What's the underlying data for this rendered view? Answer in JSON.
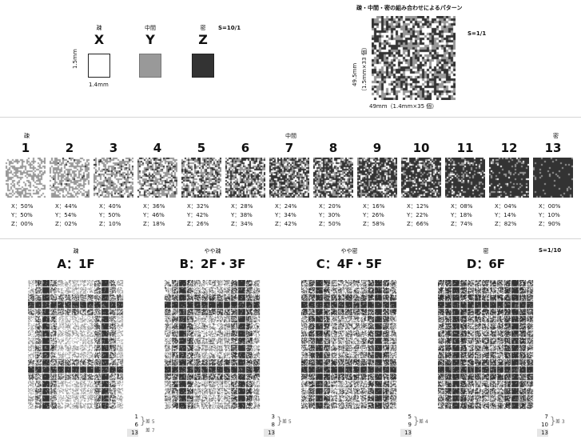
{
  "top": {
    "materials": [
      {
        "density_label": "疎",
        "letter": "X",
        "color": "#ffffff"
      },
      {
        "density_label": "中間",
        "letter": "Y",
        "color": "#999999"
      },
      {
        "density_label": "密",
        "letter": "Z",
        "color": "#333333"
      }
    ],
    "scale_left": "S=10/1",
    "height_dim": "1.5mm",
    "width_dim": "1.4mm",
    "pattern_title": "疎・中間・密の組み合わせによるパターン",
    "scale_right": "S=1/1",
    "pattern_height_dim": "49.5mm",
    "pattern_height_sub": "（1.5mm×33 個）",
    "pattern_width_dim": "49mm（1.4mm×35 個）"
  },
  "densities": {
    "label_sparse": "疎",
    "label_mid": "中間",
    "label_dense": "密",
    "items": [
      {
        "n": "1",
        "x": "X：50%",
        "y": "Y：50%",
        "z": "Z：00%",
        "xv": 50,
        "yv": 50,
        "zv": 0
      },
      {
        "n": "2",
        "x": "X：44%",
        "y": "Y：54%",
        "z": "Z：02%",
        "xv": 44,
        "yv": 54,
        "zv": 2
      },
      {
        "n": "3",
        "x": "X：40%",
        "y": "Y：50%",
        "z": "Z：10%",
        "xv": 40,
        "yv": 50,
        "zv": 10
      },
      {
        "n": "4",
        "x": "X：36%",
        "y": "Y：46%",
        "z": "Z：18%",
        "xv": 36,
        "yv": 46,
        "zv": 18
      },
      {
        "n": "5",
        "x": "X：32%",
        "y": "Y：42%",
        "z": "Z：26%",
        "xv": 32,
        "yv": 42,
        "zv": 26
      },
      {
        "n": "6",
        "x": "X：28%",
        "y": "Y：38%",
        "z": "Z：34%",
        "xv": 28,
        "yv": 38,
        "zv": 34
      },
      {
        "n": "7",
        "x": "X：24%",
        "y": "Y：34%",
        "z": "Z：42%",
        "xv": 24,
        "yv": 34,
        "zv": 42
      },
      {
        "n": "8",
        "x": "X：20%",
        "y": "Y：30%",
        "z": "Z：50%",
        "xv": 20,
        "yv": 30,
        "zv": 50
      },
      {
        "n": "9",
        "x": "X：16%",
        "y": "Y：26%",
        "z": "Z：58%",
        "xv": 16,
        "yv": 26,
        "zv": 58
      },
      {
        "n": "10",
        "x": "X：12%",
        "y": "Y：22%",
        "z": "Z：66%",
        "xv": 12,
        "yv": 22,
        "zv": 66
      },
      {
        "n": "11",
        "x": "X：08%",
        "y": "Y：18%",
        "z": "Z：74%",
        "xv": 8,
        "yv": 18,
        "zv": 74
      },
      {
        "n": "12",
        "x": "X：04%",
        "y": "Y：14%",
        "z": "Z：82%",
        "xv": 4,
        "yv": 14,
        "zv": 82
      },
      {
        "n": "13",
        "x": "X：00%",
        "y": "Y：10%",
        "z": "Z：90%",
        "xv": 0,
        "yv": 10,
        "zv": 90
      }
    ]
  },
  "floors": {
    "scale": "S=1/10",
    "items": [
      {
        "density": "疎",
        "title": "A：1F",
        "mix": [
          "1",
          "6",
          "13"
        ],
        "diff1": "差 5",
        "diff2": "差 7",
        "base": 1,
        "stripe": 6
      },
      {
        "density": "やや疎",
        "title": "B：2F・3F",
        "mix": [
          "3",
          "8",
          "13"
        ],
        "diff1": "差 5",
        "diff2": "",
        "base": 3,
        "stripe": 8
      },
      {
        "density": "やや密",
        "title": "C：4F・5F",
        "mix": [
          "5",
          "9",
          "13"
        ],
        "diff1": "差 4",
        "diff2": "",
        "base": 5,
        "stripe": 9
      },
      {
        "density": "密",
        "title": "D：6F",
        "mix": [
          "7",
          "10",
          "13"
        ],
        "diff1": "差 3",
        "diff2": "",
        "base": 7,
        "stripe": 10
      }
    ]
  }
}
